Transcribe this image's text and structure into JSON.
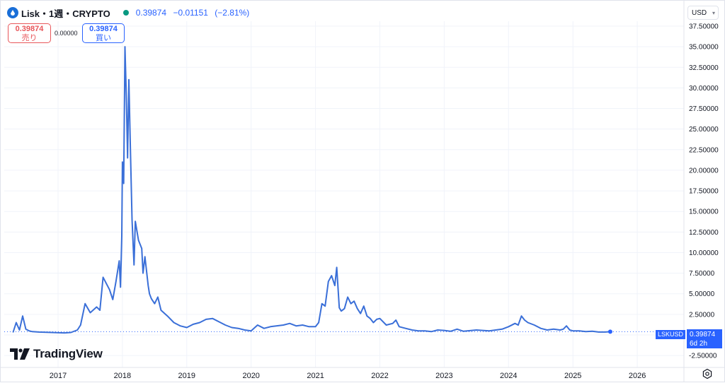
{
  "header": {
    "symbol": "Lisk・1週・CRYPTO",
    "price": "0.39874",
    "change": "−0.01151",
    "change_pct": "(−2.81%)",
    "status_color": "#089981"
  },
  "trade": {
    "sell_price": "0.39874",
    "sell_label": "売り",
    "spread": "0.00000",
    "buy_price": "0.39874",
    "buy_label": "買い"
  },
  "currency": "USD",
  "brand": "TradingView",
  "price_badge": {
    "ticker": "LSKUSD",
    "price": "0.39874",
    "countdown": "6d 2h"
  },
  "colors": {
    "line": "#3a6fd8",
    "accent": "#2962ff",
    "sell": "#e8565a"
  },
  "chart_data": {
    "type": "line",
    "ylim": [
      -3.75,
      38.25
    ],
    "y_ticks": [
      "37.50000",
      "35.00000",
      "32.50000",
      "30.00000",
      "27.50000",
      "25.00000",
      "22.50000",
      "20.00000",
      "17.50000",
      "15.00000",
      "12.50000",
      "10.00000",
      "7.50000",
      "5.00000",
      "2.50000",
      "0.00000",
      "-2.50000"
    ],
    "x_ticks": [
      "2017",
      "2018",
      "2019",
      "2020",
      "2021",
      "2022",
      "2023",
      "2024",
      "2025",
      "2026"
    ],
    "x": [
      2016.3,
      2016.35,
      2016.4,
      2016.45,
      2016.5,
      2016.55,
      2016.6,
      2016.7,
      2016.9,
      2017.1,
      2017.2,
      2017.3,
      2017.35,
      2017.42,
      2017.5,
      2017.6,
      2017.65,
      2017.7,
      2017.8,
      2017.85,
      2017.9,
      2017.95,
      2017.97,
      2017.99,
      2018.0,
      2018.02,
      2018.04,
      2018.06,
      2018.08,
      2018.1,
      2018.12,
      2018.15,
      2018.18,
      2018.2,
      2018.25,
      2018.3,
      2018.32,
      2018.35,
      2018.4,
      2018.42,
      2018.45,
      2018.5,
      2018.55,
      2018.6,
      2018.7,
      2018.8,
      2018.9,
      2019.0,
      2019.1,
      2019.2,
      2019.3,
      2019.4,
      2019.5,
      2019.6,
      2019.7,
      2019.8,
      2019.9,
      2020.0,
      2020.1,
      2020.2,
      2020.3,
      2020.5,
      2020.6,
      2020.7,
      2020.8,
      2020.9,
      2021.0,
      2021.05,
      2021.1,
      2021.15,
      2021.2,
      2021.25,
      2021.3,
      2021.33,
      2021.37,
      2021.4,
      2021.45,
      2021.5,
      2021.55,
      2021.6,
      2021.65,
      2021.7,
      2021.75,
      2021.8,
      2021.85,
      2021.9,
      2021.95,
      2022.0,
      2022.1,
      2022.2,
      2022.25,
      2022.3,
      2022.4,
      2022.5,
      2022.6,
      2022.7,
      2022.8,
      2022.9,
      2023.0,
      2023.1,
      2023.2,
      2023.3,
      2023.5,
      2023.7,
      2023.8,
      2023.9,
      2024.0,
      2024.1,
      2024.15,
      2024.2,
      2024.25,
      2024.3,
      2024.4,
      2024.5,
      2024.6,
      2024.7,
      2024.8,
      2024.85,
      2024.9,
      2024.95,
      2025.0,
      2025.1,
      2025.2,
      2025.3,
      2025.4,
      2025.5,
      2025.58
    ],
    "values": [
      0.3,
      1.5,
      0.6,
      2.3,
      0.7,
      0.5,
      0.4,
      0.35,
      0.3,
      0.25,
      0.3,
      0.6,
      1.2,
      3.8,
      2.7,
      3.4,
      3.0,
      7.0,
      5.5,
      4.3,
      6.5,
      9.0,
      5.8,
      12.0,
      21.0,
      18.4,
      35.0,
      29.0,
      21.5,
      31.0,
      24.0,
      14.0,
      8.5,
      13.8,
      11.5,
      10.5,
      7.5,
      9.5,
      6.0,
      5.0,
      4.4,
      3.8,
      4.6,
      3.0,
      2.3,
      1.5,
      1.1,
      0.9,
      1.3,
      1.5,
      1.9,
      2.0,
      1.6,
      1.2,
      0.9,
      0.8,
      0.6,
      0.5,
      1.2,
      0.8,
      1.0,
      1.2,
      1.4,
      1.1,
      1.2,
      1.0,
      1.0,
      1.5,
      3.8,
      3.5,
      6.5,
      7.2,
      6.0,
      8.2,
      3.3,
      2.9,
      3.2,
      4.6,
      3.8,
      4.1,
      3.2,
      2.6,
      3.5,
      2.3,
      2.0,
      1.5,
      1.9,
      2.0,
      1.2,
      1.4,
      1.8,
      1.0,
      0.8,
      0.6,
      0.5,
      0.5,
      0.4,
      0.6,
      0.55,
      0.45,
      0.7,
      0.45,
      0.6,
      0.5,
      0.6,
      0.7,
      1.0,
      1.4,
      1.2,
      2.3,
      1.8,
      1.5,
      1.2,
      0.8,
      0.6,
      0.7,
      0.6,
      0.7,
      1.1,
      0.6,
      0.5,
      0.5,
      0.4,
      0.45,
      0.35,
      0.35,
      0.39874
    ]
  }
}
